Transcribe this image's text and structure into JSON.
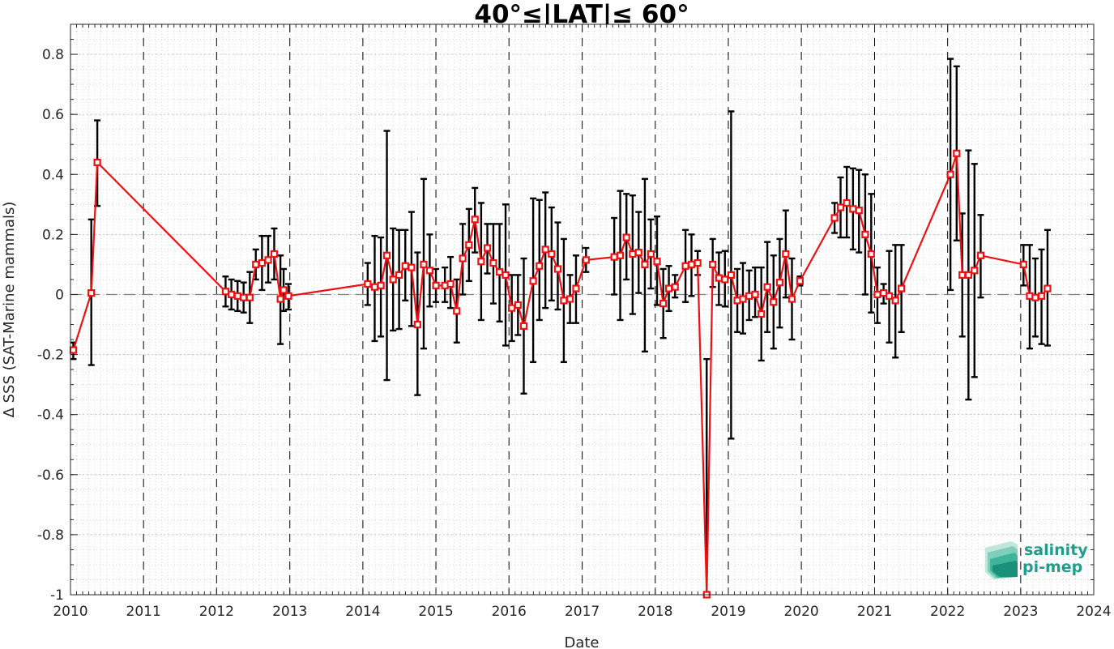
{
  "chart_data": {
    "type": "line",
    "title": "40°≤|LAT|≤ 60°",
    "xlabel": "Date",
    "ylabel": "Δ SSS (SAT-Marine mammals)",
    "xlim": [
      "2010-01-01",
      "2024-01-01"
    ],
    "ylim": [
      -1,
      0.9
    ],
    "xticks": [
      "2010",
      "2011",
      "2012",
      "2013",
      "2014",
      "2015",
      "2016",
      "2017",
      "2018",
      "2019",
      "2020",
      "2021",
      "2022",
      "2023",
      "2024"
    ],
    "yticks": [
      -1,
      -0.8,
      -0.6,
      -0.4,
      -0.2,
      0,
      0.2,
      0.4,
      0.6,
      0.8
    ],
    "ytick_labels": [
      "-1",
      "-0.8",
      "-0.6",
      "-0.4",
      "-0.2",
      "0",
      "0.2",
      "0.4",
      "0.6",
      "0.8"
    ],
    "grid": true,
    "reference_line": 0,
    "year_lines": [
      "2011",
      "2012",
      "2013",
      "2014",
      "2015",
      "2016",
      "2017",
      "2018",
      "2019",
      "2020",
      "2021",
      "2022",
      "2023"
    ],
    "series_color": "#ee1111",
    "errorbar_color": "#000000",
    "logo": {
      "line1": "salinity",
      "line2": "pi-mep",
      "color": "#1f9e8a"
    },
    "points": [
      {
        "date": "2010-01-15",
        "y": -0.185,
        "lo": -0.215,
        "hi": -0.16
      },
      {
        "date": "2010-04-15",
        "y": 0.005,
        "lo": -0.235,
        "hi": 0.25
      },
      {
        "date": "2010-05-15",
        "y": 0.44,
        "lo": 0.295,
        "hi": 0.58
      },
      {
        "date": "2012-02-15",
        "y": 0.01,
        "lo": -0.04,
        "hi": 0.06
      },
      {
        "date": "2012-03-15",
        "y": 0.0,
        "lo": -0.05,
        "hi": 0.05
      },
      {
        "date": "2012-04-15",
        "y": -0.005,
        "lo": -0.055,
        "hi": 0.045
      },
      {
        "date": "2012-05-15",
        "y": -0.01,
        "lo": -0.06,
        "hi": 0.04
      },
      {
        "date": "2012-06-15",
        "y": -0.01,
        "lo": -0.095,
        "hi": 0.075
      },
      {
        "date": "2012-07-15",
        "y": 0.1,
        "lo": 0.05,
        "hi": 0.15
      },
      {
        "date": "2012-08-15",
        "y": 0.105,
        "lo": 0.015,
        "hi": 0.195
      },
      {
        "date": "2012-09-15",
        "y": 0.115,
        "lo": 0.04,
        "hi": 0.195
      },
      {
        "date": "2012-10-15",
        "y": 0.135,
        "lo": 0.05,
        "hi": 0.22
      },
      {
        "date": "2012-11-15",
        "y": -0.015,
        "lo": -0.165,
        "hi": 0.13
      },
      {
        "date": "2012-12-01",
        "y": 0.015,
        "lo": -0.055,
        "hi": 0.085
      },
      {
        "date": "2012-12-25",
        "y": -0.005,
        "lo": -0.05,
        "hi": 0.035
      },
      {
        "date": "2014-01-25",
        "y": 0.035,
        "lo": -0.035,
        "hi": 0.105
      },
      {
        "date": "2014-03-01",
        "y": 0.025,
        "lo": -0.155,
        "hi": 0.195
      },
      {
        "date": "2014-04-01",
        "y": 0.03,
        "lo": -0.14,
        "hi": 0.19
      },
      {
        "date": "2014-05-01",
        "y": 0.13,
        "lo": -0.285,
        "hi": 0.545
      },
      {
        "date": "2014-06-01",
        "y": 0.05,
        "lo": -0.12,
        "hi": 0.22
      },
      {
        "date": "2014-07-01",
        "y": 0.065,
        "lo": -0.115,
        "hi": 0.215
      },
      {
        "date": "2014-08-01",
        "y": 0.095,
        "lo": -0.02,
        "hi": 0.215
      },
      {
        "date": "2014-09-01",
        "y": 0.09,
        "lo": -0.105,
        "hi": 0.275
      },
      {
        "date": "2014-10-01",
        "y": -0.1,
        "lo": -0.335,
        "hi": 0.14
      },
      {
        "date": "2014-11-01",
        "y": 0.1,
        "lo": -0.18,
        "hi": 0.385
      },
      {
        "date": "2014-12-01",
        "y": 0.08,
        "lo": -0.04,
        "hi": 0.2
      },
      {
        "date": "2015-01-01",
        "y": 0.03,
        "lo": -0.025,
        "hi": 0.085
      },
      {
        "date": "2015-02-15",
        "y": 0.03,
        "lo": -0.025,
        "hi": 0.09
      },
      {
        "date": "2015-03-15",
        "y": 0.035,
        "lo": -0.045,
        "hi": 0.125
      },
      {
        "date": "2015-04-15",
        "y": -0.055,
        "lo": -0.16,
        "hi": 0.05
      },
      {
        "date": "2015-05-15",
        "y": 0.12,
        "lo": 0.0,
        "hi": 0.235
      },
      {
        "date": "2015-06-15",
        "y": 0.165,
        "lo": 0.045,
        "hi": 0.285
      },
      {
        "date": "2015-07-15",
        "y": 0.25,
        "lo": 0.14,
        "hi": 0.355
      },
      {
        "date": "2015-08-15",
        "y": 0.11,
        "lo": -0.085,
        "hi": 0.305
      },
      {
        "date": "2015-09-15",
        "y": 0.155,
        "lo": 0.07,
        "hi": 0.235
      },
      {
        "date": "2015-10-15",
        "y": 0.105,
        "lo": -0.03,
        "hi": 0.235
      },
      {
        "date": "2015-11-15",
        "y": 0.075,
        "lo": -0.09,
        "hi": 0.235
      },
      {
        "date": "2015-12-15",
        "y": 0.065,
        "lo": -0.17,
        "hi": 0.3
      },
      {
        "date": "2016-01-15",
        "y": -0.045,
        "lo": -0.155,
        "hi": 0.065
      },
      {
        "date": "2016-02-15",
        "y": -0.035,
        "lo": -0.135,
        "hi": 0.065
      },
      {
        "date": "2016-03-15",
        "y": -0.105,
        "lo": -0.33,
        "hi": 0.12
      },
      {
        "date": "2016-05-01",
        "y": 0.045,
        "lo": -0.225,
        "hi": 0.32
      },
      {
        "date": "2016-06-01",
        "y": 0.095,
        "lo": -0.085,
        "hi": 0.315
      },
      {
        "date": "2016-07-01",
        "y": 0.15,
        "lo": -0.045,
        "hi": 0.34
      },
      {
        "date": "2016-08-01",
        "y": 0.135,
        "lo": -0.02,
        "hi": 0.29
      },
      {
        "date": "2016-09-01",
        "y": 0.085,
        "lo": -0.05,
        "hi": 0.24
      },
      {
        "date": "2016-10-01",
        "y": -0.02,
        "lo": -0.225,
        "hi": 0.185
      },
      {
        "date": "2016-11-01",
        "y": -0.015,
        "lo": -0.095,
        "hi": 0.065
      },
      {
        "date": "2016-12-01",
        "y": 0.02,
        "lo": -0.095,
        "hi": 0.13
      },
      {
        "date": "2017-01-20",
        "y": 0.115,
        "lo": 0.075,
        "hi": 0.155
      },
      {
        "date": "2017-06-10",
        "y": 0.125,
        "lo": 0.0,
        "hi": 0.255
      },
      {
        "date": "2017-07-10",
        "y": 0.13,
        "lo": -0.085,
        "hi": 0.345
      },
      {
        "date": "2017-08-10",
        "y": 0.19,
        "lo": 0.05,
        "hi": 0.335
      },
      {
        "date": "2017-09-10",
        "y": 0.135,
        "lo": -0.065,
        "hi": 0.33
      },
      {
        "date": "2017-10-10",
        "y": 0.14,
        "lo": 0.005,
        "hi": 0.275
      },
      {
        "date": "2017-11-10",
        "y": 0.1,
        "lo": -0.19,
        "hi": 0.385
      },
      {
        "date": "2017-12-10",
        "y": 0.135,
        "lo": 0.02,
        "hi": 0.25
      },
      {
        "date": "2018-01-10",
        "y": 0.11,
        "lo": -0.035,
        "hi": 0.26
      },
      {
        "date": "2018-02-10",
        "y": -0.03,
        "lo": -0.145,
        "hi": 0.085
      },
      {
        "date": "2018-03-10",
        "y": 0.02,
        "lo": -0.055,
        "hi": 0.095
      },
      {
        "date": "2018-04-10",
        "y": 0.025,
        "lo": -0.01,
        "hi": 0.065
      },
      {
        "date": "2018-06-01",
        "y": 0.095,
        "lo": -0.025,
        "hi": 0.215
      },
      {
        "date": "2018-07-01",
        "y": 0.1,
        "lo": -0.005,
        "hi": 0.2
      },
      {
        "date": "2018-08-01",
        "y": 0.105,
        "lo": 0.065,
        "hi": 0.145
      },
      {
        "date": "2018-09-15",
        "y": -1.0,
        "lo": -1.0,
        "hi": -0.215
      },
      {
        "date": "2018-10-15",
        "y": 0.1,
        "lo": 0.025,
        "hi": 0.185
      },
      {
        "date": "2018-11-15",
        "y": 0.055,
        "lo": -0.035,
        "hi": 0.14
      },
      {
        "date": "2018-12-15",
        "y": 0.05,
        "lo": -0.04,
        "hi": 0.145
      },
      {
        "date": "2019-01-15",
        "y": 0.065,
        "lo": -0.48,
        "hi": 0.61
      },
      {
        "date": "2019-02-15",
        "y": -0.02,
        "lo": -0.125,
        "hi": 0.085
      },
      {
        "date": "2019-03-15",
        "y": -0.015,
        "lo": -0.13,
        "hi": 0.105
      },
      {
        "date": "2019-04-15",
        "y": -0.005,
        "lo": -0.085,
        "hi": 0.08
      },
      {
        "date": "2019-05-15",
        "y": 0.0,
        "lo": -0.075,
        "hi": 0.09
      },
      {
        "date": "2019-06-15",
        "y": -0.065,
        "lo": -0.22,
        "hi": 0.09
      },
      {
        "date": "2019-07-15",
        "y": 0.025,
        "lo": -0.125,
        "hi": 0.175
      },
      {
        "date": "2019-08-15",
        "y": -0.025,
        "lo": -0.18,
        "hi": 0.13
      },
      {
        "date": "2019-09-15",
        "y": 0.04,
        "lo": -0.11,
        "hi": 0.185
      },
      {
        "date": "2019-10-15",
        "y": 0.135,
        "lo": -0.01,
        "hi": 0.28
      },
      {
        "date": "2019-11-15",
        "y": -0.015,
        "lo": -0.15,
        "hi": 0.12
      },
      {
        "date": "2019-12-25",
        "y": 0.045,
        "lo": 0.03,
        "hi": 0.06
      },
      {
        "date": "2020-06-15",
        "y": 0.255,
        "lo": 0.205,
        "hi": 0.305
      },
      {
        "date": "2020-07-15",
        "y": 0.29,
        "lo": 0.19,
        "hi": 0.39
      },
      {
        "date": "2020-08-15",
        "y": 0.305,
        "lo": 0.19,
        "hi": 0.425
      },
      {
        "date": "2020-09-15",
        "y": 0.285,
        "lo": 0.15,
        "hi": 0.42
      },
      {
        "date": "2020-10-15",
        "y": 0.28,
        "lo": 0.14,
        "hi": 0.415
      },
      {
        "date": "2020-11-15",
        "y": 0.2,
        "lo": 0.0,
        "hi": 0.4
      },
      {
        "date": "2020-12-15",
        "y": 0.135,
        "lo": -0.06,
        "hi": 0.335
      },
      {
        "date": "2021-01-15",
        "y": 0.0,
        "lo": -0.095,
        "hi": 0.09
      },
      {
        "date": "2021-02-15",
        "y": 0.005,
        "lo": -0.03,
        "hi": 0.035
      },
      {
        "date": "2021-03-15",
        "y": -0.005,
        "lo": -0.16,
        "hi": 0.145
      },
      {
        "date": "2021-04-15",
        "y": -0.02,
        "lo": -0.21,
        "hi": 0.165
      },
      {
        "date": "2021-05-15",
        "y": 0.02,
        "lo": -0.125,
        "hi": 0.165
      },
      {
        "date": "2022-01-15",
        "y": 0.4,
        "lo": 0.015,
        "hi": 0.785
      },
      {
        "date": "2022-02-15",
        "y": 0.47,
        "lo": 0.18,
        "hi": 0.76
      },
      {
        "date": "2022-03-15",
        "y": 0.065,
        "lo": -0.14,
        "hi": 0.27
      },
      {
        "date": "2022-04-15",
        "y": 0.065,
        "lo": -0.35,
        "hi": 0.48
      },
      {
        "date": "2022-05-15",
        "y": 0.08,
        "lo": -0.275,
        "hi": 0.435
      },
      {
        "date": "2022-06-15",
        "y": 0.13,
        "lo": -0.01,
        "hi": 0.265
      },
      {
        "date": "2023-01-15",
        "y": 0.1,
        "lo": 0.03,
        "hi": 0.165
      },
      {
        "date": "2023-02-15",
        "y": -0.005,
        "lo": -0.18,
        "hi": 0.165
      },
      {
        "date": "2023-03-15",
        "y": -0.01,
        "lo": -0.14,
        "hi": 0.12
      },
      {
        "date": "2023-04-15",
        "y": -0.005,
        "lo": -0.165,
        "hi": 0.15
      },
      {
        "date": "2023-05-15",
        "y": 0.02,
        "lo": -0.17,
        "hi": 0.215
      }
    ]
  }
}
